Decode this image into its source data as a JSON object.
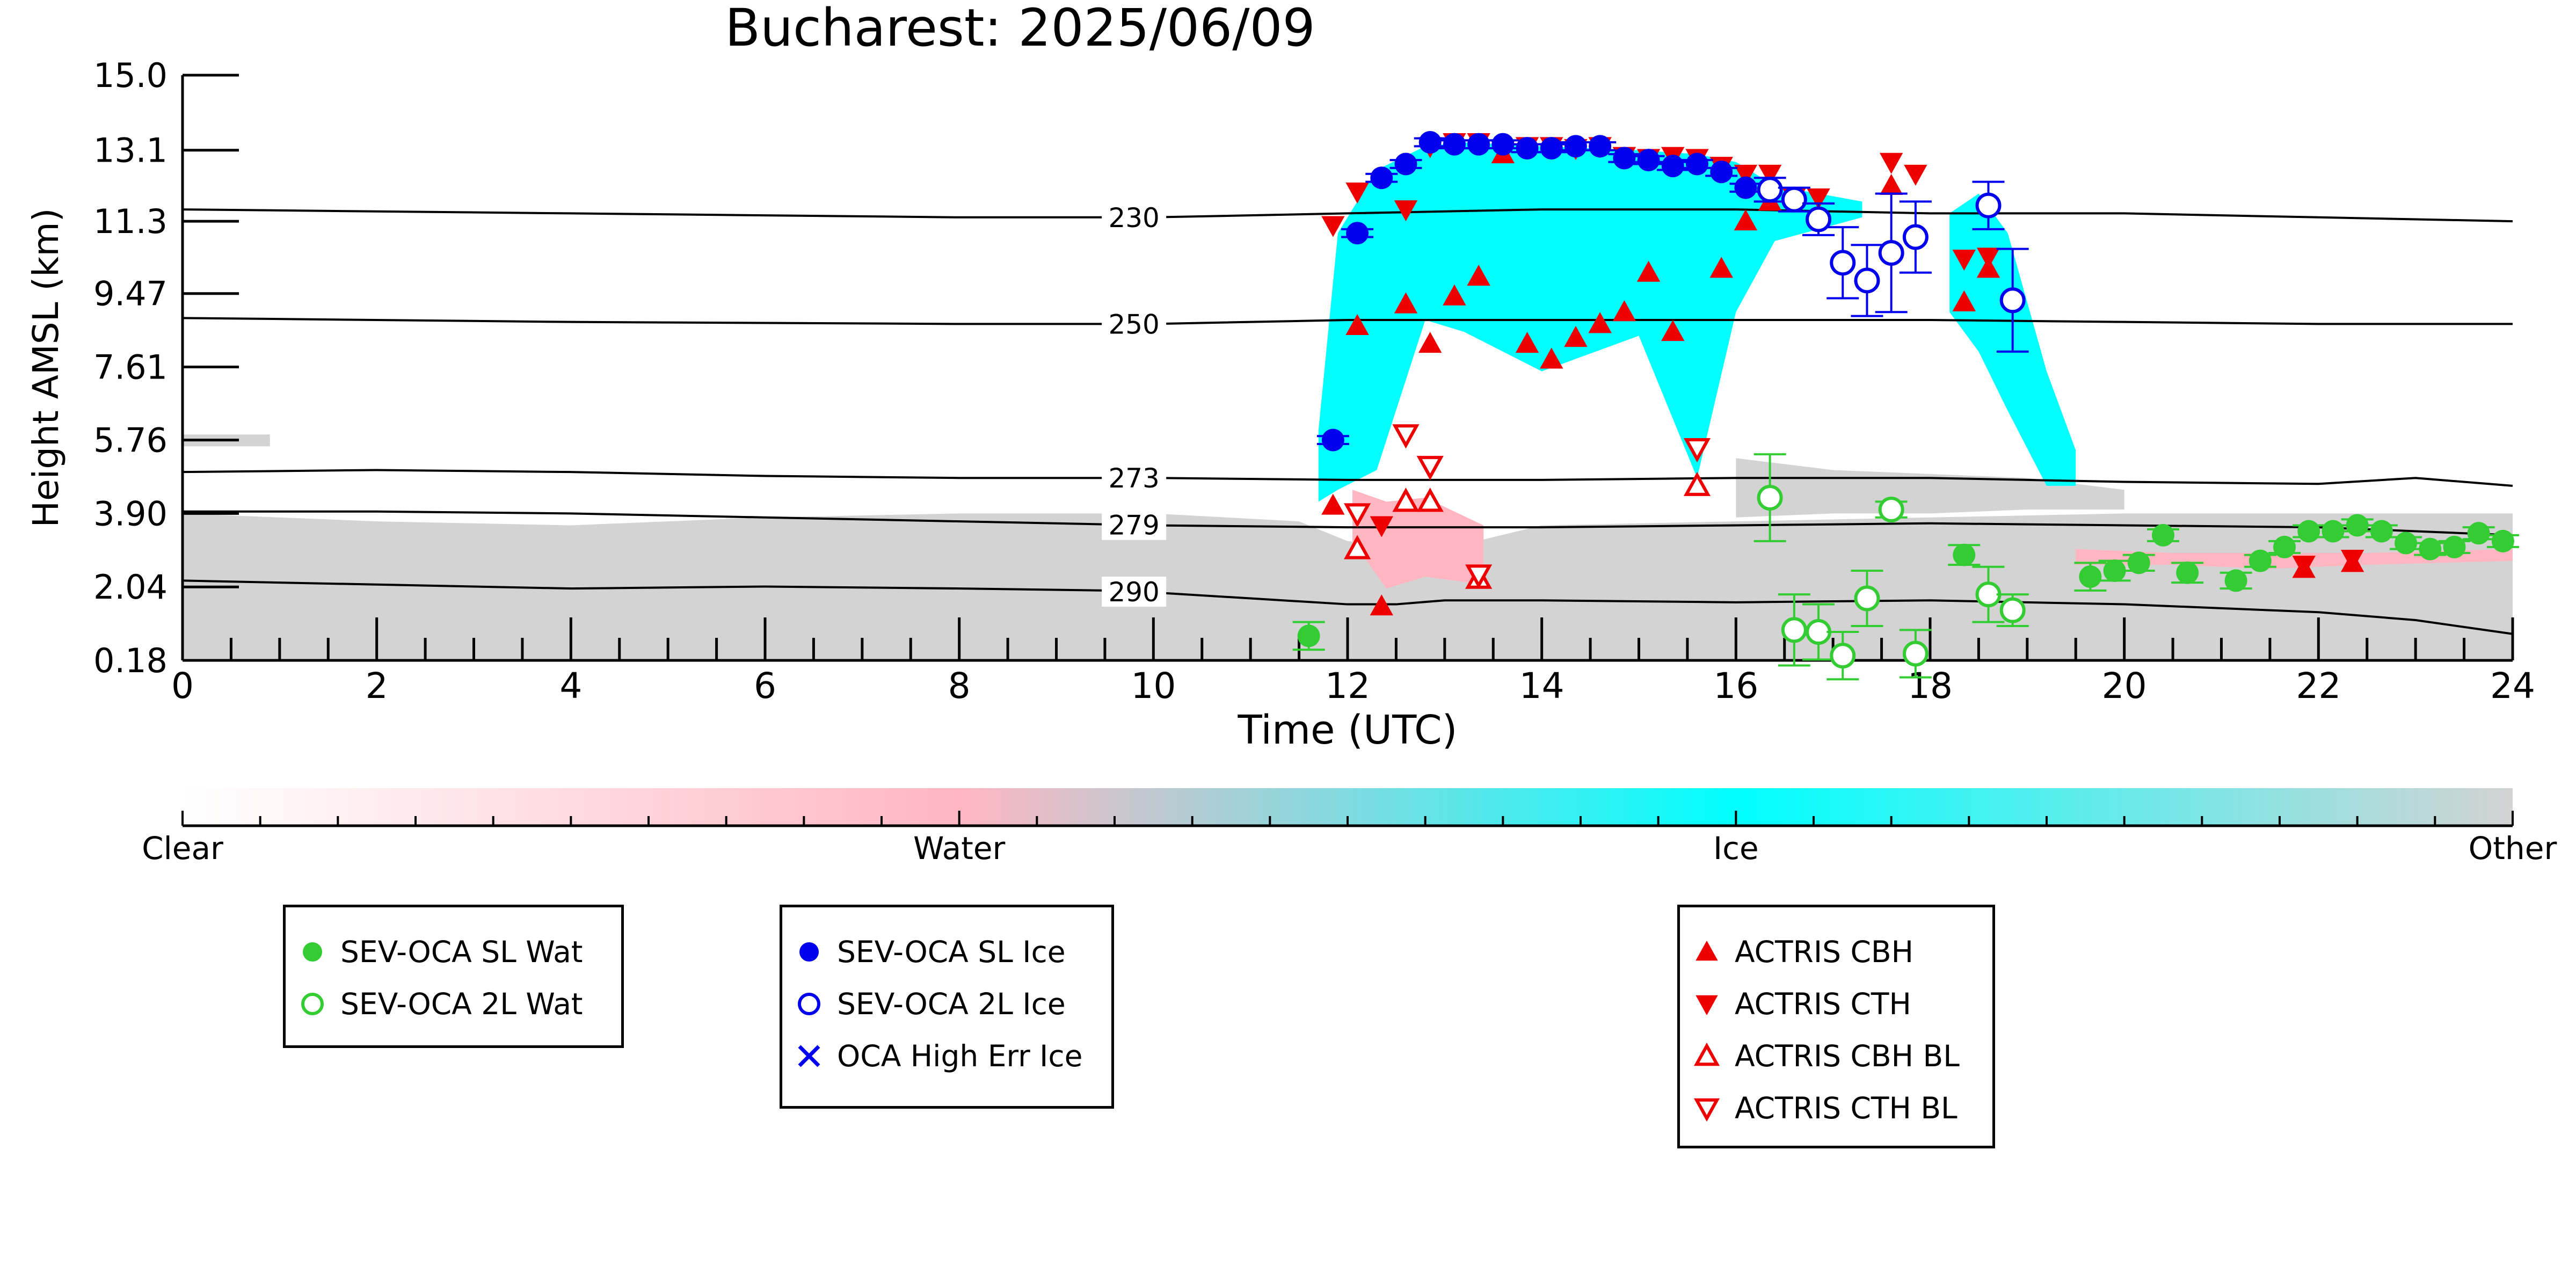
{
  "chart_data": {
    "type": "scatter",
    "title": "Bucharest: 2025/06/09",
    "xlabel": "Time (UTC)",
    "ylabel": "Height AMSL (km)",
    "xlim": [
      0,
      24
    ],
    "ylim": [
      0.18,
      15.0
    ],
    "xticks": [
      "0",
      "2",
      "4",
      "6",
      "8",
      "10",
      "12",
      "14",
      "16",
      "18",
      "20",
      "22",
      "24"
    ],
    "yticks": [
      "0.18",
      "2.04",
      "3.90",
      "5.76",
      "7.61",
      "9.47",
      "11.3",
      "13.1",
      "15.0"
    ],
    "colorbar": {
      "labels": [
        "Clear",
        "Water",
        "Ice",
        "Other"
      ],
      "colors": [
        "#ffffff",
        "#ffb6c1",
        "#00ffff",
        "#d3d3d3"
      ]
    },
    "isotherms": [
      {
        "label": "230",
        "x": [
          0,
          4,
          8,
          10,
          12,
          14,
          16,
          18,
          20,
          22,
          24
        ],
        "y": [
          11.6,
          11.5,
          11.4,
          11.4,
          11.5,
          11.6,
          11.6,
          11.5,
          11.5,
          11.4,
          11.3
        ]
      },
      {
        "label": "250",
        "x": [
          0,
          4,
          8,
          10,
          12,
          14,
          16,
          18,
          20,
          22,
          24
        ],
        "y": [
          8.85,
          8.75,
          8.7,
          8.7,
          8.8,
          8.8,
          8.8,
          8.8,
          8.75,
          8.7,
          8.7
        ]
      },
      {
        "label": "273",
        "x": [
          0,
          2,
          4,
          6,
          8,
          10,
          12,
          14,
          16,
          18,
          20,
          22,
          23,
          24
        ],
        "y": [
          4.95,
          5.0,
          4.95,
          4.85,
          4.8,
          4.8,
          4.75,
          4.75,
          4.8,
          4.8,
          4.7,
          4.65,
          4.8,
          4.6
        ]
      },
      {
        "label": "279",
        "x": [
          0,
          2,
          4,
          6,
          8,
          10,
          12,
          14,
          16,
          18,
          20,
          22,
          24
        ],
        "y": [
          3.95,
          3.95,
          3.9,
          3.8,
          3.7,
          3.6,
          3.55,
          3.55,
          3.6,
          3.65,
          3.6,
          3.55,
          3.35
        ]
      },
      {
        "label": "290",
        "x": [
          0,
          2,
          4,
          6,
          8,
          9.5,
          10,
          11,
          12,
          12.5,
          13,
          14,
          16,
          18,
          20,
          22,
          23,
          24
        ],
        "y": [
          2.2,
          2.1,
          2.0,
          2.05,
          2.0,
          1.95,
          1.9,
          1.75,
          1.6,
          1.6,
          1.7,
          1.7,
          1.65,
          1.7,
          1.6,
          1.4,
          1.2,
          0.85
        ]
      }
    ],
    "series": [
      {
        "name": "SEV-OCA SL Wat",
        "x": [
          11.6,
          18.35,
          19.65,
          19.9,
          20.15,
          20.4,
          20.65,
          21.15,
          21.4,
          21.65,
          21.9,
          22.15,
          22.4,
          22.65,
          22.9,
          23.15,
          23.4,
          23.65,
          23.9
        ],
        "y": [
          0.8,
          2.85,
          2.3,
          2.45,
          2.65,
          3.35,
          2.4,
          2.2,
          2.7,
          3.05,
          3.45,
          3.45,
          3.6,
          3.45,
          3.15,
          3.0,
          3.05,
          3.4,
          3.2
        ],
        "yerr": [
          0.35,
          0.25,
          0.35,
          0.25,
          0.2,
          0.15,
          0.25,
          0.2,
          0.15,
          0.15,
          0.15,
          0.15,
          0.15,
          0.15,
          0.15,
          0.15,
          0.15,
          0.15,
          0.15
        ]
      },
      {
        "name": "SEV-OCA 2L Wat",
        "x": [
          16.35,
          16.6,
          16.85,
          17.1,
          17.35,
          17.6,
          17.85,
          18.6,
          18.85
        ],
        "y": [
          4.3,
          0.95,
          0.9,
          0.3,
          1.75,
          4.0,
          0.35,
          1.85,
          1.45
        ],
        "yerr": [
          1.1,
          0.9,
          0.7,
          0.6,
          0.7,
          0.2,
          0.6,
          0.7,
          0.4
        ]
      },
      {
        "name": "SEV-OCA SL Ice",
        "x": [
          11.85,
          12.1,
          12.35,
          12.6,
          12.85,
          13.1,
          13.35,
          13.6,
          13.85,
          14.1,
          14.35,
          14.6,
          14.85,
          15.1,
          15.35,
          15.6,
          15.85,
          16.1
        ],
        "y": [
          5.76,
          11.0,
          12.4,
          12.75,
          13.3,
          13.25,
          13.25,
          13.25,
          13.15,
          13.15,
          13.2,
          13.2,
          12.9,
          12.85,
          12.7,
          12.75,
          12.55,
          12.15
        ],
        "yerr": [
          0.1,
          0.1,
          0.1,
          0.1,
          0.1,
          0.1,
          0.1,
          0.1,
          0.1,
          0.1,
          0.1,
          0.1,
          0.1,
          0.1,
          0.1,
          0.1,
          0.1,
          0.1
        ]
      },
      {
        "name": "SEV-OCA 2L Ice",
        "x": [
          16.35,
          16.6,
          16.85,
          17.1,
          17.35,
          17.6,
          17.85,
          18.6,
          18.85
        ],
        "y": [
          12.1,
          11.85,
          11.35,
          10.25,
          9.8,
          10.5,
          10.9,
          11.7,
          9.3
        ],
        "yerr": [
          0.3,
          0.3,
          0.4,
          0.9,
          0.9,
          1.5,
          0.9,
          0.6,
          1.3
        ]
      },
      {
        "name": "OCA High Err Ice",
        "x": [],
        "y": []
      },
      {
        "name": "ACTRIS CBH",
        "x": [
          11.85,
          12.1,
          12.35,
          12.6,
          12.85,
          13.1,
          13.35,
          13.6,
          13.85,
          14.1,
          14.35,
          14.6,
          14.85,
          15.1,
          15.35,
          15.6,
          15.85,
          16.1,
          16.35,
          17.6,
          18.35,
          18.6,
          21.85,
          22.35
        ],
        "y": [
          4.1,
          8.65,
          1.55,
          9.2,
          8.2,
          9.4,
          9.9,
          13.0,
          8.2,
          7.8,
          8.35,
          8.7,
          9.0,
          10.0,
          8.5,
          4.6,
          10.1,
          11.3,
          11.8,
          12.2,
          9.25,
          10.1,
          2.5,
          2.65
        ]
      },
      {
        "name": "ACTRIS CTH",
        "x": [
          11.85,
          12.1,
          12.35,
          12.6,
          12.85,
          13.1,
          13.35,
          13.6,
          13.85,
          14.1,
          14.35,
          14.6,
          14.85,
          15.1,
          15.35,
          15.6,
          15.85,
          16.1,
          16.35,
          16.6,
          16.85,
          17.6,
          17.85,
          18.35,
          18.6,
          21.85,
          22.35
        ],
        "y": [
          11.2,
          12.05,
          3.6,
          11.6,
          13.2,
          13.3,
          13.3,
          13.1,
          13.2,
          13.2,
          13.15,
          13.2,
          12.95,
          12.9,
          12.95,
          12.9,
          12.7,
          12.5,
          12.5,
          11.9,
          11.9,
          12.8,
          12.5,
          10.35,
          10.4,
          2.6,
          2.75
        ]
      },
      {
        "name": "ACTRIS CBH BL",
        "x": [
          12.1,
          12.6,
          12.85,
          13.35,
          15.6
        ],
        "y": [
          3.0,
          4.2,
          4.2,
          2.25,
          4.6
        ]
      },
      {
        "name": "ACTRIS CTH BL",
        "x": [
          12.1,
          12.6,
          12.85,
          13.35,
          15.6
        ],
        "y": [
          3.9,
          5.9,
          5.1,
          2.35,
          5.55
        ]
      }
    ]
  },
  "legends": [
    {
      "items": [
        {
          "marker": "filled-circle",
          "color": "#33cc33",
          "label": "SEV-OCA SL Wat"
        },
        {
          "marker": "open-circle",
          "color": "#33cc33",
          "label": "SEV-OCA 2L Wat"
        }
      ]
    },
    {
      "items": [
        {
          "marker": "filled-circle",
          "color": "#0000ee",
          "label": "SEV-OCA SL Ice"
        },
        {
          "marker": "open-circle",
          "color": "#0000ee",
          "label": "SEV-OCA 2L Ice"
        },
        {
          "marker": "x-cross",
          "color": "#0000ee",
          "label": "OCA High Err Ice"
        }
      ]
    },
    {
      "items": [
        {
          "marker": "filled-triangle-up",
          "color": "#ee0000",
          "label": "ACTRIS CBH"
        },
        {
          "marker": "filled-triangle-down",
          "color": "#ee0000",
          "label": "ACTRIS CTH"
        },
        {
          "marker": "open-triangle-up",
          "color": "#ee0000",
          "label": "ACTRIS CBH BL"
        },
        {
          "marker": "open-triangle-down",
          "color": "#ee0000",
          "label": "ACTRIS CTH BL"
        }
      ]
    }
  ]
}
